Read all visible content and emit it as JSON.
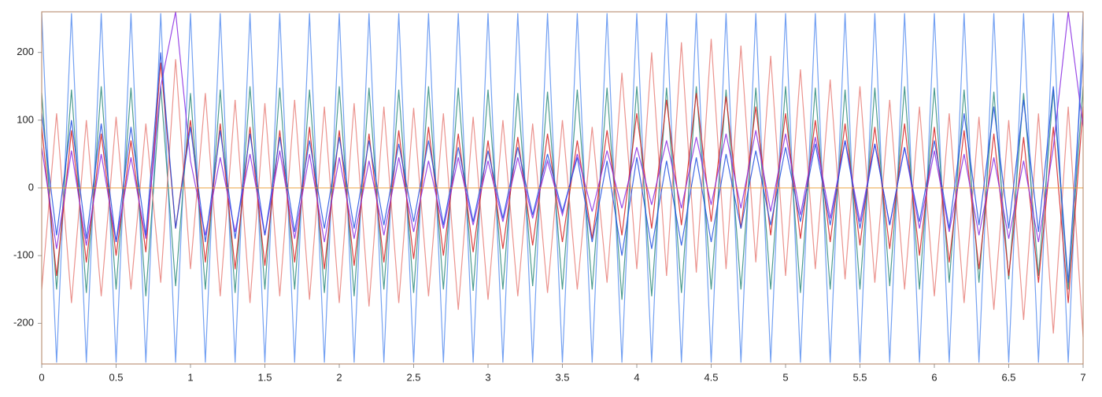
{
  "chart_data": {
    "type": "line",
    "x": [
      0,
      0.1,
      0.2,
      0.3,
      0.4,
      0.5,
      0.6,
      0.7,
      0.8,
      0.9,
      1,
      1.1,
      1.2,
      1.3,
      1.4,
      1.5,
      1.6,
      1.7,
      1.8,
      1.9,
      2,
      2.1,
      2.2,
      2.3,
      2.4,
      2.5,
      2.6,
      2.7,
      2.8,
      2.9,
      3,
      3.1,
      3.2,
      3.3,
      3.4,
      3.5,
      3.6,
      3.7,
      3.8,
      3.9,
      4,
      4.1,
      4.2,
      4.3,
      4.4,
      4.5,
      4.6,
      4.7,
      4.8,
      4.9,
      5,
      5.1,
      5.2,
      5.3,
      5.4,
      5.5,
      5.6,
      5.7,
      5.8,
      5.9,
      6,
      6.1,
      6.2,
      6.3,
      6.4,
      6.5,
      6.6,
      6.7,
      6.8,
      6.9,
      7
    ],
    "xlim": [
      0,
      7
    ],
    "xticks": [
      0,
      0.5,
      1,
      1.5,
      2,
      2.5,
      3,
      3.5,
      4,
      4.5,
      5,
      5.5,
      6,
      6.5,
      7
    ],
    "ylim": [
      -260,
      260
    ],
    "yticks": [
      -200,
      -100,
      0,
      100,
      200
    ],
    "series": [
      {
        "color": "#5b8ff0",
        "values": [
          258,
          -258,
          258,
          -258,
          258,
          -258,
          258,
          -258,
          258,
          -258,
          258,
          -258,
          258,
          -258,
          258,
          -258,
          258,
          -258,
          258,
          -258,
          258,
          -258,
          258,
          -258,
          258,
          -258,
          258,
          -258,
          258,
          -258,
          258,
          -258,
          258,
          -258,
          258,
          -258,
          258,
          -258,
          258,
          -258,
          258,
          -258,
          258,
          -258,
          258,
          -258,
          258,
          -258,
          258,
          -258,
          258,
          -258,
          258,
          -258,
          258,
          -258,
          258,
          -258,
          258,
          -258,
          258,
          -258,
          258,
          -258,
          258,
          -258,
          258,
          -258,
          258,
          -258,
          258
        ]
      },
      {
        "color": "#2e8b7a",
        "values": [
          140,
          -150,
          145,
          -155,
          150,
          -150,
          148,
          -160,
          150,
          -145,
          140,
          -150,
          145,
          -155,
          150,
          -150,
          148,
          -150,
          145,
          -155,
          150,
          -160,
          148,
          -150,
          145,
          -155,
          150,
          -150,
          148,
          -152,
          145,
          -150,
          140,
          -145,
          142,
          -150,
          145,
          -150,
          148,
          -165,
          150,
          -160,
          148,
          -155,
          150,
          -150,
          145,
          -150,
          148,
          -150,
          150,
          -155,
          148,
          -150,
          145,
          -150,
          148,
          -145,
          150,
          -150,
          148,
          -140,
          145,
          -140,
          142,
          -135,
          140,
          -130,
          145,
          -150,
          150
        ]
      },
      {
        "color": "#e8807a",
        "values": [
          -150,
          110,
          -170,
          100,
          -160,
          105,
          -150,
          95,
          -140,
          190,
          -120,
          140,
          -160,
          130,
          -170,
          125,
          -160,
          130,
          -165,
          120,
          -170,
          125,
          -175,
          120,
          -170,
          118,
          -160,
          110,
          -180,
          105,
          -165,
          100,
          -160,
          95,
          -155,
          100,
          -150,
          90,
          -140,
          170,
          -120,
          200,
          -130,
          215,
          -125,
          220,
          -120,
          210,
          -110,
          195,
          -130,
          175,
          -120,
          160,
          -135,
          150,
          -140,
          130,
          -150,
          120,
          -160,
          110,
          -170,
          105,
          -180,
          100,
          -195,
          110,
          -215,
          120,
          -220
        ]
      },
      {
        "color": "#d62020",
        "values": [
          90,
          -130,
          85,
          -110,
          80,
          -100,
          70,
          -95,
          185,
          -60,
          100,
          -110,
          95,
          -120,
          90,
          -115,
          85,
          -110,
          90,
          -120,
          85,
          -115,
          80,
          -110,
          85,
          -105,
          90,
          -100,
          80,
          -95,
          70,
          -90,
          75,
          -85,
          80,
          -80,
          70,
          -75,
          85,
          -70,
          110,
          -60,
          130,
          -55,
          140,
          -50,
          135,
          -60,
          120,
          -70,
          110,
          -75,
          100,
          -80,
          95,
          -85,
          90,
          -90,
          95,
          -100,
          90,
          -110,
          85,
          -120,
          80,
          -130,
          75,
          -140,
          90,
          -170,
          120
        ]
      },
      {
        "color": "#8a2be2",
        "values": [
          60,
          -90,
          55,
          -85,
          50,
          -80,
          45,
          -75,
          150,
          260,
          40,
          -70,
          45,
          -65,
          50,
          -70,
          55,
          -75,
          50,
          -80,
          45,
          -75,
          40,
          -70,
          45,
          -65,
          40,
          -60,
          45,
          -55,
          40,
          -50,
          45,
          -45,
          40,
          -40,
          50,
          -35,
          55,
          -30,
          60,
          -25,
          70,
          -30,
          75,
          -25,
          80,
          -30,
          85,
          -35,
          80,
          -40,
          75,
          -45,
          70,
          -50,
          65,
          -55,
          60,
          -60,
          55,
          -65,
          50,
          -70,
          45,
          -75,
          40,
          -80,
          60,
          260,
          90
        ]
      },
      {
        "color": "#2050e0",
        "values": [
          110,
          -70,
          100,
          -75,
          95,
          -80,
          90,
          -70,
          200,
          -60,
          90,
          -80,
          85,
          -75,
          80,
          -70,
          75,
          -65,
          70,
          -60,
          75,
          -60,
          70,
          -55,
          65,
          -50,
          70,
          -55,
          60,
          -50,
          55,
          -45,
          60,
          -40,
          50,
          -35,
          45,
          -80,
          40,
          -100,
          45,
          -90,
          40,
          -85,
          45,
          -80,
          50,
          -60,
          55,
          -55,
          60,
          -50,
          65,
          -55,
          70,
          -60,
          65,
          -55,
          60,
          -50,
          70,
          -60,
          110,
          -55,
          120,
          -60,
          130,
          -65,
          150,
          -140,
          200
        ]
      }
    ]
  }
}
